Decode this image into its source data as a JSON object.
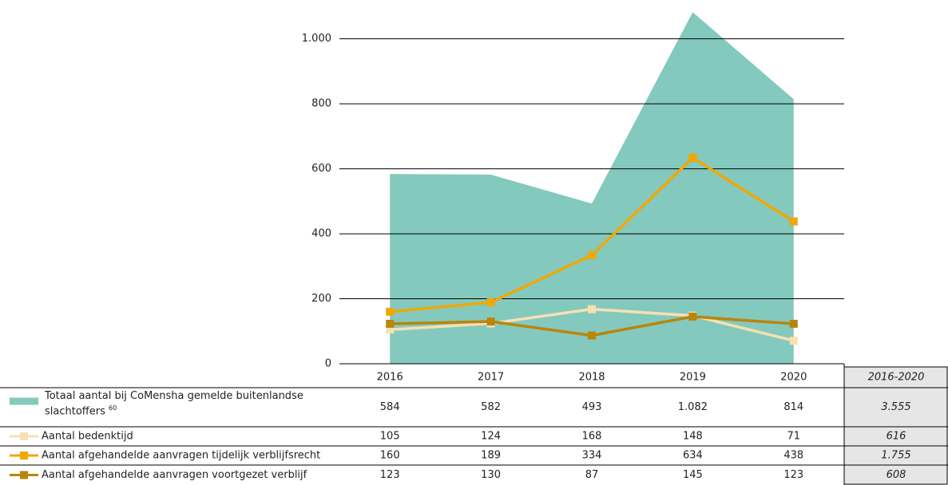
{
  "chart_data": {
    "type": "area_line",
    "categories": [
      "2016",
      "2017",
      "2018",
      "2019",
      "2020"
    ],
    "total_header": "2016-2020",
    "ylim": [
      0,
      1090
    ],
    "yticks": [
      0,
      200,
      400,
      600,
      800,
      {
        "value": 1000,
        "label": "1.000"
      }
    ],
    "grid": true,
    "series": [
      {
        "name": "Totaal aantal bij CoMensha gemelde buitenlandse slachtoffers",
        "footnote": "60",
        "style": "area",
        "color": "#84c9be",
        "values": [
          584,
          582,
          493,
          1082,
          814
        ],
        "value_labels": [
          "584",
          "582",
          "493",
          "1.082",
          "814"
        ],
        "total": 3555,
        "total_label": "3.555"
      },
      {
        "name": "Aantal bedenktijd",
        "style": "line",
        "color": "#f7e0b2",
        "values": [
          105,
          124,
          168,
          148,
          71
        ],
        "total": 616
      },
      {
        "name": "Aantal afgehandelde aanvragen tijdelijk verblijfsrecht",
        "style": "line",
        "color": "#f0a800",
        "values": [
          160,
          189,
          334,
          634,
          438
        ],
        "total": 1755,
        "total_label": "1.755"
      },
      {
        "name": "Aantal afgehandelde aanvragen voortgezet verblijf",
        "style": "line",
        "color": "#b8860b",
        "values": [
          123,
          130,
          87,
          145,
          123
        ],
        "total": 608
      }
    ]
  }
}
